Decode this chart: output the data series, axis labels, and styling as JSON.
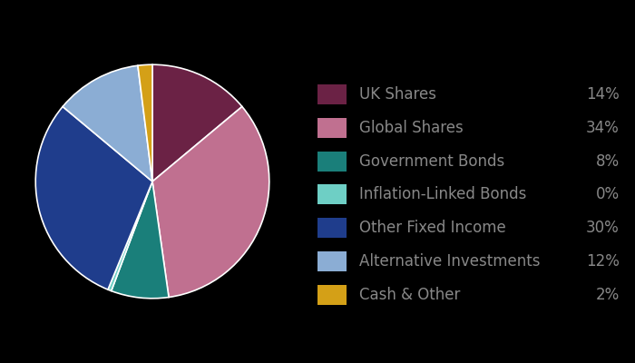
{
  "labels": [
    "UK Shares",
    "Global Shares",
    "Government Bonds",
    "Inflation-Linked Bonds",
    "Other Fixed Income",
    "Alternative Investments",
    "Cash & Other"
  ],
  "values": [
    14,
    34,
    8,
    0.5,
    30,
    12,
    2
  ],
  "display_pcts": [
    "14%",
    "34%",
    "8%",
    "0%",
    "30%",
    "12%",
    "2%"
  ],
  "colors": [
    "#6B2245",
    "#C07090",
    "#1A7F7A",
    "#6ECFC5",
    "#1F3D8C",
    "#8BADD4",
    "#D4A017"
  ],
  "background_color": "#000000",
  "text_color": "#888888",
  "legend_label_fontsize": 12,
  "legend_pct_fontsize": 12,
  "figsize": [
    7.0,
    4.0
  ],
  "dpi": 100,
  "startangle": 90
}
